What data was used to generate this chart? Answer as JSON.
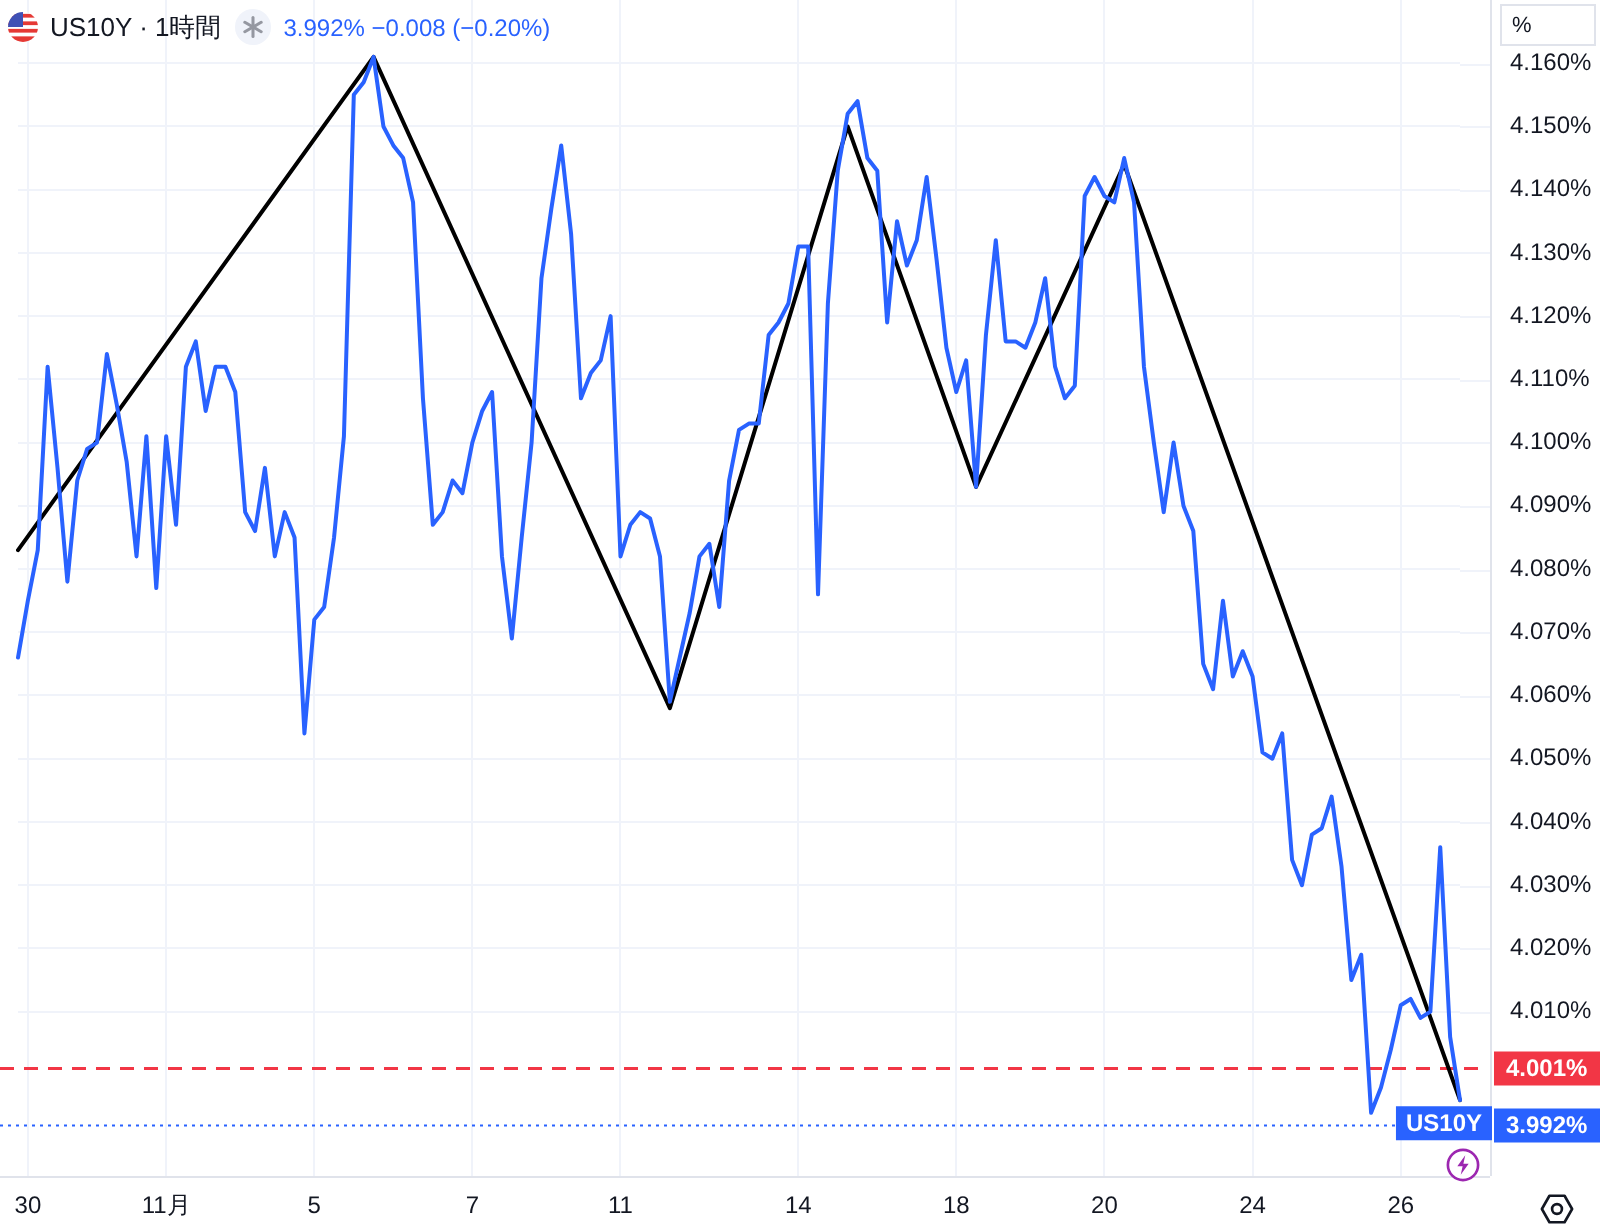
{
  "chart_data": {
    "type": "line",
    "title": "US10Y · 1時間",
    "subtitle": "3.992% −0.008 (−0.20%)",
    "ylabel": "%",
    "categories": [
      null,
      "30",
      null,
      null,
      null,
      null,
      null,
      null,
      null,
      null,
      null,
      null,
      null,
      null,
      null,
      "11月",
      null,
      null,
      null,
      null,
      null,
      null,
      null,
      null,
      null,
      null,
      null,
      null,
      null,
      null,
      "5",
      null,
      null,
      null,
      null,
      null,
      null,
      null,
      null,
      null,
      null,
      null,
      null,
      null,
      null,
      null,
      "7",
      null,
      null,
      null,
      null,
      null,
      null,
      null,
      null,
      null,
      null,
      null,
      null,
      null,
      null,
      "11",
      null,
      null,
      null,
      null,
      null,
      null,
      null,
      null,
      null,
      null,
      null,
      null,
      null,
      null,
      null,
      null,
      null,
      "14",
      null,
      null,
      null,
      null,
      null,
      null,
      null,
      null,
      null,
      null,
      null,
      null,
      null,
      null,
      null,
      "18",
      null,
      null,
      null,
      null,
      null,
      null,
      null,
      null,
      null,
      null,
      null,
      null,
      null,
      null,
      "20",
      null,
      null,
      null,
      null,
      null,
      null,
      null,
      null,
      null,
      null,
      null,
      null,
      null,
      null,
      "24",
      null,
      null,
      null,
      null,
      null,
      null,
      null,
      null,
      null,
      null,
      null,
      null,
      null,
      null,
      "26",
      null,
      null,
      null,
      null,
      null,
      null
    ],
    "series": [
      {
        "name": "US10Y",
        "color": "#2962ff",
        "values": [
          4.066,
          4.075,
          4.083,
          4.112,
          4.096,
          4.078,
          4.094,
          4.099,
          4.1,
          4.114,
          4.106,
          4.097,
          4.082,
          4.101,
          4.077,
          4.101,
          4.087,
          4.112,
          4.116,
          4.105,
          4.112,
          4.112,
          4.108,
          4.089,
          4.086,
          4.096,
          4.082,
          4.089,
          4.085,
          4.054,
          4.072,
          4.074,
          4.085,
          4.101,
          4.155,
          4.157,
          4.161,
          4.15,
          4.147,
          4.145,
          4.138,
          4.107,
          4.087,
          4.089,
          4.094,
          4.092,
          4.1,
          4.105,
          4.108,
          4.082,
          4.069,
          4.085,
          4.1,
          4.126,
          4.137,
          4.147,
          4.133,
          4.107,
          4.111,
          4.113,
          4.12,
          4.082,
          4.087,
          4.089,
          4.088,
          4.082,
          4.059,
          4.066,
          4.073,
          4.082,
          4.084,
          4.074,
          4.094,
          4.102,
          4.103,
          4.103,
          4.117,
          4.119,
          4.122,
          4.131,
          4.131,
          4.076,
          4.122,
          4.143,
          4.152,
          4.154,
          4.145,
          4.143,
          4.119,
          4.135,
          4.128,
          4.132,
          4.142,
          4.129,
          4.115,
          4.108,
          4.113,
          4.093,
          4.117,
          4.132,
          4.116,
          4.116,
          4.115,
          4.119,
          4.126,
          4.112,
          4.107,
          4.109,
          4.139,
          4.142,
          4.139,
          4.138,
          4.145,
          4.138,
          4.112,
          4.1,
          4.089,
          4.1,
          4.09,
          4.086,
          4.065,
          4.061,
          4.075,
          4.063,
          4.067,
          4.063,
          4.051,
          4.05,
          4.054,
          4.034,
          4.03,
          4.038,
          4.039,
          4.044,
          4.033,
          4.015,
          4.019,
          3.994,
          3.998,
          4.004,
          4.011,
          4.012,
          4.009,
          4.01,
          4.036,
          4.006,
          3.996
        ]
      },
      {
        "type": "line",
        "color": "#000000",
        "values": [
          4.083,
          null,
          null,
          null,
          null,
          null,
          null,
          null,
          null,
          null,
          null,
          null,
          null,
          null,
          null,
          null,
          null,
          null,
          null,
          null,
          null,
          null,
          null,
          null,
          null,
          null,
          null,
          null,
          null,
          null,
          null,
          null,
          null,
          null,
          null,
          null,
          4.161,
          null,
          null,
          null,
          null,
          null,
          null,
          null,
          null,
          null,
          null,
          null,
          null,
          null,
          null,
          null,
          null,
          null,
          null,
          null,
          null,
          null,
          null,
          null,
          null,
          null,
          null,
          null,
          null,
          null,
          4.058,
          null,
          null,
          null,
          null,
          null,
          null,
          null,
          null,
          null,
          null,
          null,
          null,
          null,
          null,
          null,
          null,
          null,
          4.15,
          null,
          null,
          null,
          null,
          null,
          null,
          null,
          null,
          null,
          null,
          null,
          null,
          4.093,
          null,
          null,
          null,
          null,
          null,
          null,
          null,
          null,
          null,
          null,
          null,
          null,
          null,
          null,
          4.144,
          null,
          null,
          null,
          null,
          null,
          null,
          null,
          null,
          null,
          null,
          null,
          null,
          null,
          null,
          null,
          null,
          null,
          null,
          null,
          null,
          null,
          null,
          null,
          null,
          null,
          null,
          null,
          null,
          null,
          null,
          null,
          null,
          null,
          3.996
        ]
      }
    ],
    "ylim": [
      3.984,
      4.17
    ],
    "yticks": [
      {
        "value": 4.01,
        "label": "4.010%"
      },
      {
        "value": 4.02,
        "label": "4.020%"
      },
      {
        "value": 4.03,
        "label": "4.030%"
      },
      {
        "value": 4.04,
        "label": "4.040%"
      },
      {
        "value": 4.05,
        "label": "4.050%"
      },
      {
        "value": 4.06,
        "label": "4.060%"
      },
      {
        "value": 4.07,
        "label": "4.070%"
      },
      {
        "value": 4.08,
        "label": "4.080%"
      },
      {
        "value": 4.09,
        "label": "4.090%"
      },
      {
        "value": 4.1,
        "label": "4.100%"
      },
      {
        "value": 4.11,
        "label": "4.110%"
      },
      {
        "value": 4.12,
        "label": "4.120%"
      },
      {
        "value": 4.13,
        "label": "4.130%"
      },
      {
        "value": 4.14,
        "label": "4.140%"
      },
      {
        "value": 4.15,
        "label": "4.150%"
      },
      {
        "value": 4.16,
        "label": "4.160%"
      }
    ],
    "grid": true,
    "marker": "none",
    "ref_lines": [
      {
        "axis": "y",
        "value": 4.001,
        "label": "4.001%",
        "color": "#f23645",
        "line_style": "dashed"
      },
      {
        "axis": "y",
        "value": 3.992,
        "label": "3.992%",
        "color": "#2962ff",
        "line_style": "dotted"
      }
    ]
  }
}
